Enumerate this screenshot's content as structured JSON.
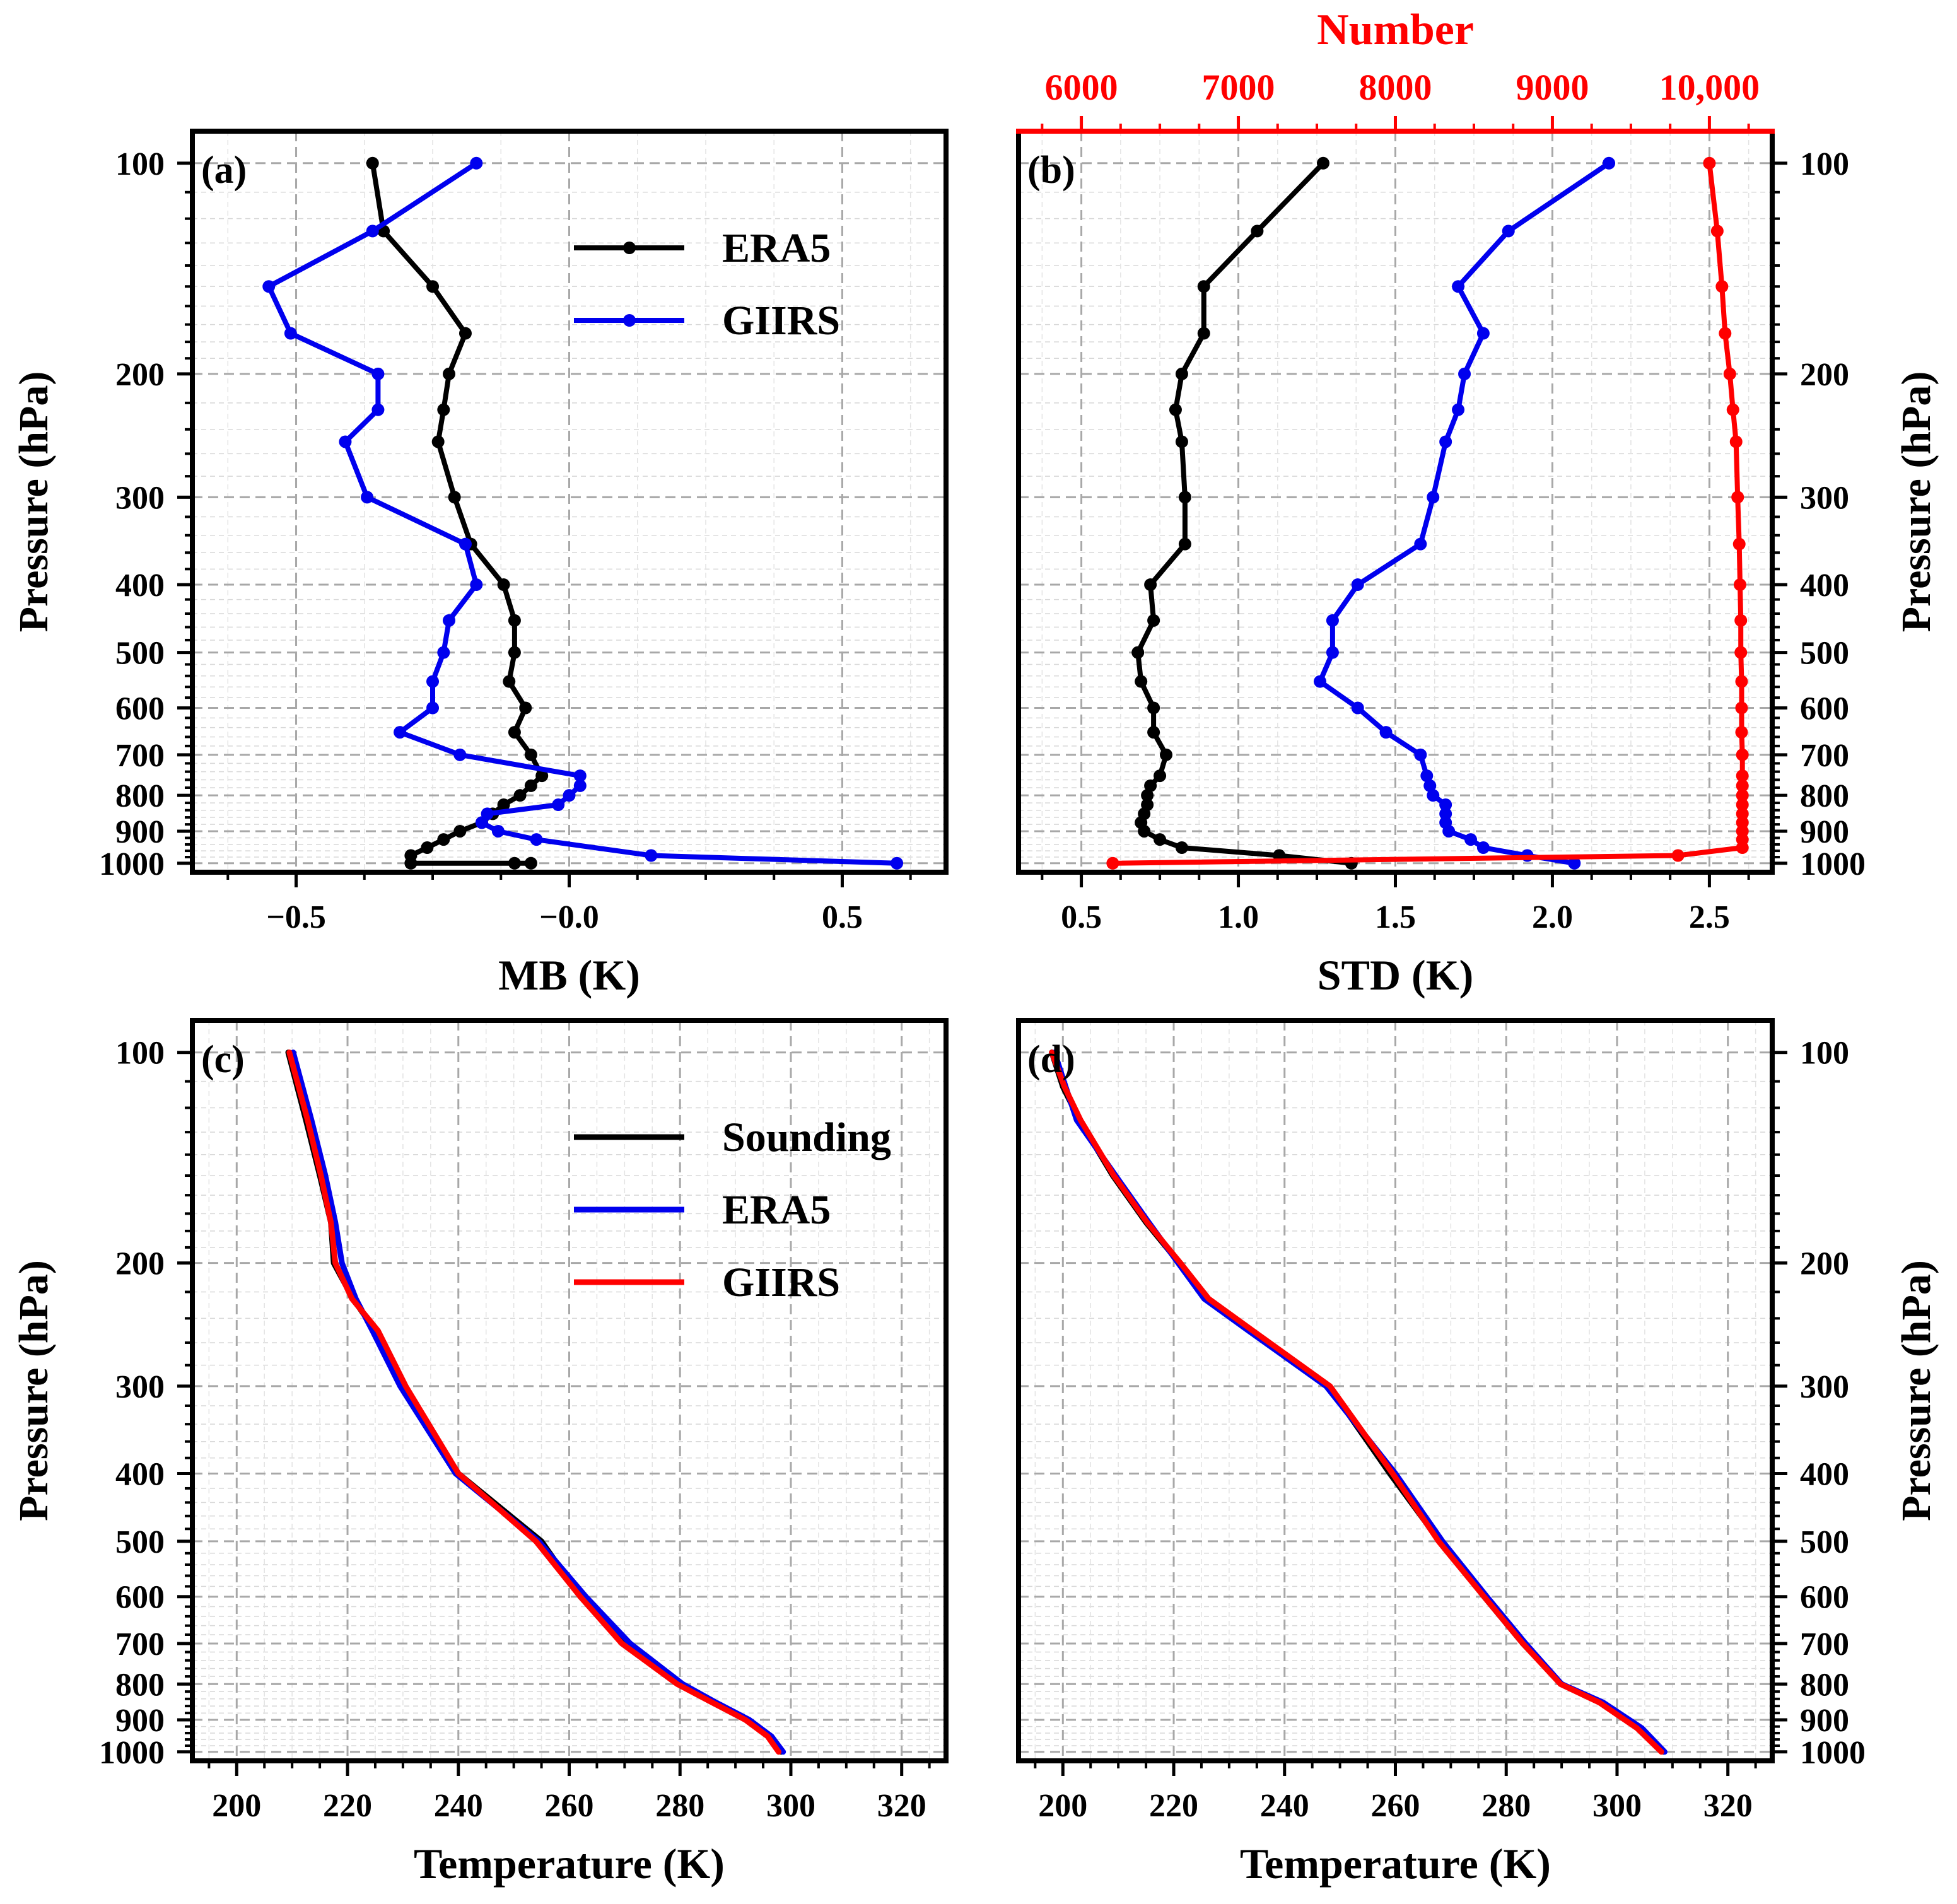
{
  "chart_data": [
    {
      "id": "a",
      "type": "line",
      "panel_label": "(a)",
      "xlabel": "MB (K)",
      "ylabel": "Pressure (hPa)",
      "yscale": "log",
      "xlim": [
        -0.69,
        0.69
      ],
      "ylim": [
        1030,
        90
      ],
      "xticks": [
        -0.5,
        0.0,
        0.5
      ],
      "xtick_labels": [
        "−0.5",
        "−0.0",
        "0.5"
      ],
      "yticks": [
        100,
        200,
        300,
        400,
        500,
        600,
        700,
        800,
        900,
        1000
      ],
      "ytick_labels": [
        "100",
        "200",
        "300",
        "400",
        "500",
        "600",
        "700",
        "800",
        "900",
        "1000"
      ],
      "ytick_side": "left",
      "legend_position": "upper-right",
      "grid": true,
      "series": [
        {
          "name": "ERA5",
          "color": "#000000",
          "markers": true,
          "x": [
            -0.36,
            -0.34,
            -0.25,
            -0.19,
            -0.22,
            -0.23,
            -0.24,
            -0.21,
            -0.18,
            -0.12,
            -0.1,
            -0.1,
            -0.11,
            -0.08,
            -0.1,
            -0.07,
            -0.05,
            -0.07,
            -0.09,
            -0.12,
            -0.14,
            -0.16,
            -0.2,
            -0.23,
            -0.26,
            -0.29,
            -0.29,
            -0.1,
            -0.07
          ],
          "y": [
            100,
            125,
            150,
            175,
            200,
            225,
            250,
            300,
            350,
            400,
            450,
            500,
            550,
            600,
            650,
            700,
            750,
            775,
            800,
            825,
            850,
            875,
            900,
            925,
            950,
            975,
            1000,
            1000,
            1000
          ]
        },
        {
          "name": "GIIRS",
          "color": "#0000ee",
          "markers": true,
          "x": [
            -0.17,
            -0.36,
            -0.55,
            -0.51,
            -0.35,
            -0.35,
            -0.41,
            -0.37,
            -0.19,
            -0.17,
            -0.22,
            -0.23,
            -0.25,
            -0.25,
            -0.31,
            -0.2,
            0.02,
            0.02,
            0.0,
            -0.02,
            -0.15,
            -0.16,
            -0.13,
            -0.06,
            0.15,
            0.6
          ],
          "y": [
            100,
            125,
            150,
            175,
            200,
            225,
            250,
            300,
            350,
            400,
            450,
            500,
            550,
            600,
            650,
            700,
            750,
            775,
            800,
            825,
            850,
            875,
            900,
            925,
            975,
            1000
          ]
        }
      ]
    },
    {
      "id": "b",
      "type": "line",
      "panel_label": "(b)",
      "xlabel": "STD (K)",
      "ylabel": "Pressure (hPa)",
      "yscale": "log",
      "xlim": [
        0.3,
        2.7
      ],
      "ylim": [
        1030,
        90
      ],
      "xticks": [
        0.5,
        1.0,
        1.5,
        2.0,
        2.5
      ],
      "xtick_labels": [
        "0.5",
        "1.0",
        "1.5",
        "2.0",
        "2.5"
      ],
      "yticks": [
        100,
        200,
        300,
        400,
        500,
        600,
        700,
        800,
        900,
        1000
      ],
      "ytick_labels": [
        "100",
        "200",
        "300",
        "400",
        "500",
        "600",
        "700",
        "800",
        "900",
        "1000"
      ],
      "ytick_side": "right",
      "top_axis": {
        "label": "Number",
        "color": "#ff0000",
        "xlim": [
          5600,
          10400
        ],
        "ticks": [
          6000,
          7000,
          8000,
          9000,
          10000
        ],
        "tick_labels": [
          "6000",
          "7000",
          "8000",
          "9000",
          "10,000"
        ]
      },
      "grid": true,
      "series": [
        {
          "name": "ERA5",
          "color": "#000000",
          "markers": true,
          "x": [
            1.27,
            1.06,
            0.89,
            0.89,
            0.82,
            0.8,
            0.82,
            0.83,
            0.83,
            0.72,
            0.73,
            0.68,
            0.69,
            0.73,
            0.73,
            0.77,
            0.75,
            0.72,
            0.71,
            0.71,
            0.7,
            0.69,
            0.7,
            0.75,
            0.82,
            1.13,
            1.36
          ],
          "y": [
            100,
            125,
            150,
            175,
            200,
            225,
            250,
            300,
            350,
            400,
            450,
            500,
            550,
            600,
            650,
            700,
            750,
            775,
            800,
            825,
            850,
            875,
            900,
            925,
            950,
            975,
            1000
          ]
        },
        {
          "name": "GIIRS",
          "color": "#0000ee",
          "markers": true,
          "x": [
            2.18,
            1.86,
            1.7,
            1.78,
            1.72,
            1.7,
            1.66,
            1.62,
            1.58,
            1.38,
            1.3,
            1.3,
            1.26,
            1.38,
            1.47,
            1.58,
            1.6,
            1.61,
            1.62,
            1.66,
            1.66,
            1.66,
            1.67,
            1.74,
            1.78,
            1.92,
            2.07
          ],
          "y": [
            100,
            125,
            150,
            175,
            200,
            225,
            250,
            300,
            350,
            400,
            450,
            500,
            550,
            600,
            650,
            700,
            750,
            775,
            800,
            825,
            850,
            875,
            900,
            925,
            950,
            975,
            1000
          ]
        },
        {
          "name": "Number",
          "color": "#ff0000",
          "markers": true,
          "axis": "top",
          "x": [
            10000,
            10050,
            10080,
            10100,
            10130,
            10150,
            10170,
            10180,
            10190,
            10195,
            10200,
            10200,
            10205,
            10205,
            10205,
            10210,
            10210,
            10210,
            10210,
            10210,
            10210,
            10210,
            10210,
            10210,
            10210,
            9800,
            6200
          ],
          "y": [
            100,
            125,
            150,
            175,
            200,
            225,
            250,
            300,
            350,
            400,
            450,
            500,
            550,
            600,
            650,
            700,
            750,
            775,
            800,
            825,
            850,
            875,
            900,
            925,
            950,
            975,
            1000
          ]
        }
      ]
    },
    {
      "id": "c",
      "type": "line",
      "panel_label": "(c)",
      "xlabel": "Temperature (K)",
      "ylabel": "Pressure (hPa)",
      "yscale": "log",
      "xlim": [
        192,
        328
      ],
      "ylim": [
        1030,
        90
      ],
      "xticks": [
        200,
        220,
        240,
        260,
        280,
        300,
        320
      ],
      "xtick_labels": [
        "200",
        "220",
        "240",
        "260",
        "280",
        "300",
        "320"
      ],
      "yticks": [
        100,
        200,
        300,
        400,
        500,
        600,
        700,
        800,
        900,
        1000
      ],
      "ytick_labels": [
        "100",
        "200",
        "300",
        "400",
        "500",
        "600",
        "700",
        "800",
        "900",
        "1000"
      ],
      "ytick_side": "left",
      "legend_position": "upper-right",
      "grid": true,
      "series": [
        {
          "name": "Sounding",
          "color": "#000000",
          "markers": false,
          "x": [
            209.3,
            212.5,
            215,
            217,
            217.5,
            221,
            225,
            230,
            240,
            255,
            262,
            270,
            280,
            286,
            292,
            296,
            298.3
          ],
          "y": [
            100,
            125,
            150,
            175,
            200,
            225,
            250,
            300,
            400,
            500,
            600,
            700,
            800,
            850,
            900,
            950,
            1000
          ]
        },
        {
          "name": "ERA5",
          "color": "#0000ee",
          "markers": false,
          "x": [
            210.2,
            213.5,
            216,
            217.8,
            219,
            221.5,
            224.5,
            229.5,
            239.5,
            254.5,
            263,
            271,
            280.5,
            286.5,
            292.5,
            296.5,
            298.6
          ],
          "y": [
            100,
            125,
            150,
            175,
            200,
            225,
            250,
            300,
            400,
            500,
            600,
            700,
            800,
            850,
            900,
            950,
            1000
          ]
        },
        {
          "name": "GIIRS",
          "color": "#ff0000",
          "markers": false,
          "x": [
            209.5,
            212.8,
            215.2,
            217,
            217.8,
            220.8,
            225.5,
            230.5,
            240,
            254,
            262,
            269.5,
            279.5,
            285.8,
            291.8,
            295.8,
            297.8
          ],
          "y": [
            100,
            125,
            150,
            175,
            200,
            225,
            250,
            300,
            400,
            500,
            600,
            700,
            800,
            850,
            900,
            950,
            1000
          ]
        }
      ]
    },
    {
      "id": "d",
      "type": "line",
      "panel_label": "(d)",
      "xlabel": "Temperature (K)",
      "ylabel": "Pressure (hPa)",
      "yscale": "log",
      "xlim": [
        192,
        328
      ],
      "ylim": [
        1030,
        90
      ],
      "xticks": [
        200,
        220,
        240,
        260,
        280,
        300,
        320
      ],
      "xtick_labels": [
        "200",
        "220",
        "240",
        "260",
        "280",
        "300",
        "320"
      ],
      "yticks": [
        100,
        200,
        300,
        400,
        500,
        600,
        700,
        800,
        900,
        1000
      ],
      "ytick_labels": [
        "100",
        "200",
        "300",
        "400",
        "500",
        "600",
        "700",
        "800",
        "900",
        "1000"
      ],
      "ytick_side": "right",
      "grid": true,
      "series": [
        {
          "name": "Sounding",
          "color": "#000000",
          "markers": false,
          "x": [
            198,
            200,
            203,
            209,
            215,
            221,
            226,
            234,
            248,
            259,
            268,
            276,
            283,
            290,
            297,
            304,
            308.4
          ],
          "y": [
            100,
            112,
            125,
            150,
            175,
            200,
            225,
            250,
            300,
            400,
            500,
            600,
            700,
            800,
            850,
            925,
            1000
          ]
        },
        {
          "name": "ERA5",
          "color": "#0000ee",
          "markers": false,
          "x": [
            198.5,
            200.5,
            202.5,
            209.5,
            215.5,
            220.8,
            225.5,
            233.5,
            247.5,
            260,
            268.5,
            276.5,
            283.5,
            290,
            297.5,
            304.5,
            308.6
          ],
          "y": [
            100,
            112,
            125,
            150,
            175,
            200,
            225,
            250,
            300,
            400,
            500,
            600,
            700,
            800,
            850,
            925,
            1000
          ]
        },
        {
          "name": "GIIRS",
          "color": "#ff0000",
          "markers": false,
          "x": [
            198,
            200.3,
            203.2,
            209.2,
            215.2,
            221.2,
            226.3,
            234.3,
            248.2,
            259.5,
            267.8,
            276,
            283,
            289.8,
            296.8,
            303.6,
            308
          ],
          "y": [
            100,
            112,
            125,
            150,
            175,
            200,
            225,
            250,
            300,
            400,
            500,
            600,
            700,
            800,
            850,
            925,
            1000
          ]
        }
      ]
    }
  ]
}
